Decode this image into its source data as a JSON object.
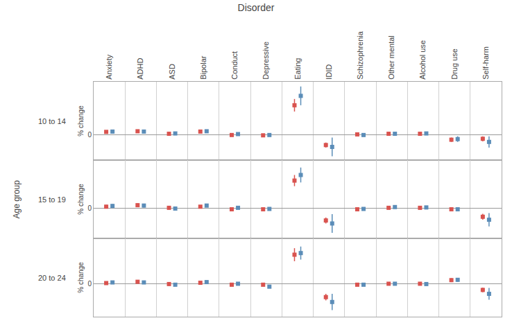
{
  "chart_data": {
    "type": "scatter",
    "title": "Disorder",
    "ylabel": "Age group",
    "marker": "square",
    "grid": true,
    "categories": [
      "Anxiety",
      "ADHD",
      "ASD",
      "Bipolar",
      "Conduct",
      "Depressive",
      "Eating",
      "IDID",
      "Schizophrenia",
      "Other mental",
      "Alcohol use",
      "Drug use",
      "Self-harm"
    ],
    "panels": [
      {
        "label": "10 to 14",
        "ylabel": "% change",
        "ylim": [
          -8,
          17
        ],
        "yticks": [
          0
        ],
        "series": [
          {
            "color": "#d9534f",
            "values": [
              1.0,
              1.2,
              0.4,
              1.1,
              0.0,
              -0.1,
              9.5,
              -3.2,
              0.2,
              0.4,
              0.4,
              -1.5,
              -1.2
            ],
            "lo": [
              0.5,
              0.7,
              0.1,
              0.7,
              -0.2,
              -0.4,
              7.5,
              -4.0,
              -0.1,
              0.1,
              0.1,
              -2.2,
              -2.0
            ],
            "hi": [
              1.5,
              1.7,
              0.7,
              1.5,
              0.2,
              0.2,
              11.5,
              -2.4,
              0.5,
              0.7,
              0.7,
              -0.8,
              -0.4
            ]
          },
          {
            "color": "#5b8db8",
            "values": [
              1.1,
              1.1,
              0.5,
              1.2,
              0.3,
              0.0,
              12.5,
              -3.8,
              0.0,
              0.4,
              0.5,
              -1.3,
              -2.2
            ],
            "lo": [
              0.6,
              0.6,
              0.1,
              0.8,
              0.0,
              -0.3,
              9.5,
              -6.8,
              -0.3,
              0.1,
              0.1,
              -2.2,
              -4.0
            ],
            "hi": [
              1.6,
              1.6,
              0.9,
              1.6,
              0.6,
              0.3,
              15.5,
              -0.8,
              0.3,
              0.7,
              0.9,
              -0.4,
              -0.4
            ]
          }
        ]
      },
      {
        "label": "15 to 19",
        "ylabel": "% change",
        "ylim": [
          -8,
          13
        ],
        "yticks": [
          0
        ],
        "series": [
          {
            "color": "#d9534f",
            "values": [
              0.5,
              0.9,
              0.2,
              0.5,
              -0.2,
              -0.2,
              7.5,
              -3.2,
              -0.2,
              0.2,
              0.2,
              -0.2,
              -2.2
            ],
            "lo": [
              0.0,
              0.4,
              -0.1,
              0.2,
              -0.5,
              -0.5,
              6.0,
              -4.0,
              -0.5,
              -0.1,
              -0.1,
              -0.7,
              -3.0
            ],
            "hi": [
              1.0,
              1.4,
              0.5,
              0.8,
              0.1,
              0.1,
              9.0,
              -2.4,
              0.1,
              0.5,
              0.5,
              0.3,
              -1.4
            ]
          },
          {
            "color": "#5b8db8",
            "values": [
              0.7,
              0.8,
              0.0,
              0.8,
              0.2,
              -0.1,
              9.0,
              -4.0,
              -0.1,
              0.4,
              0.3,
              -0.2,
              -3.0
            ],
            "lo": [
              0.2,
              0.3,
              -0.4,
              0.4,
              -0.1,
              -0.4,
              7.0,
              -6.5,
              -0.5,
              0.1,
              -0.1,
              -0.7,
              -4.8
            ],
            "hi": [
              1.2,
              1.3,
              0.4,
              1.2,
              0.5,
              0.2,
              11.0,
              -1.5,
              0.3,
              0.7,
              0.7,
              0.3,
              -1.2
            ]
          }
        ]
      },
      {
        "label": "20 to 24",
        "ylabel": "% change",
        "ylim": [
          -10,
          14
        ],
        "yticks": [
          0
        ],
        "series": [
          {
            "color": "#d9534f",
            "values": [
              0.3,
              0.7,
              0.0,
              0.4,
              -0.2,
              -0.2,
              9.0,
              -4.0,
              -0.2,
              0.1,
              0.1,
              1.2,
              -1.8
            ],
            "lo": [
              -0.1,
              0.2,
              -0.3,
              0.1,
              -0.5,
              -0.5,
              7.0,
              -5.0,
              -0.5,
              -0.2,
              -0.2,
              0.6,
              -2.5
            ],
            "hi": [
              0.7,
              1.2,
              0.3,
              0.7,
              0.1,
              0.1,
              11.0,
              -3.0,
              0.1,
              0.4,
              0.4,
              1.8,
              -1.1
            ]
          },
          {
            "color": "#5b8db8",
            "values": [
              0.5,
              0.5,
              -0.2,
              0.6,
              0.1,
              -0.8,
              9.5,
              -5.5,
              -0.2,
              0.1,
              0.0,
              1.3,
              -3.0
            ],
            "lo": [
              0.0,
              0.0,
              -0.6,
              0.2,
              -0.2,
              -1.2,
              7.5,
              -8.0,
              -0.5,
              -0.2,
              -0.3,
              0.7,
              -4.8
            ],
            "hi": [
              1.0,
              1.0,
              0.2,
              1.0,
              0.4,
              -0.4,
              11.5,
              -3.0,
              0.1,
              0.4,
              0.3,
              1.9,
              -1.2
            ]
          }
        ]
      }
    ]
  }
}
